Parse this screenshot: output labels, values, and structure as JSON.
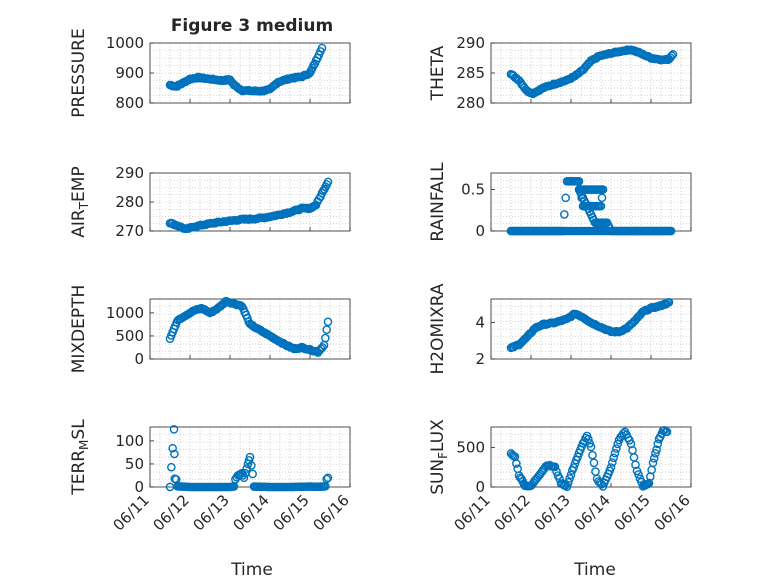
{
  "figure": {
    "title": "Figure 3 medium",
    "xlabel": "Time"
  },
  "colors": {
    "marker": "#0072BD",
    "axis": "#262626",
    "grid": "#b0b0b0",
    "background": "#ffffff"
  },
  "chart_data": [
    {
      "type": "scatter",
      "ylabel": "PRESSURE",
      "ylabel_main": "PRESSURE",
      "ylim": [
        800,
        1000
      ],
      "yticks": [
        800,
        900,
        1000
      ],
      "xlim": [
        0,
        5
      ],
      "xticks": [
        "06/11",
        "06/12",
        "06/13",
        "06/14",
        "06/15",
        "06/16"
      ],
      "show_xticklabels": false,
      "grid": true,
      "key": [
        [
          0.5,
          860
        ],
        [
          0.65,
          855
        ],
        [
          0.8,
          865
        ],
        [
          1.0,
          880
        ],
        [
          1.2,
          885
        ],
        [
          1.5,
          880
        ],
        [
          1.8,
          875
        ],
        [
          2.0,
          878
        ],
        [
          2.1,
          860
        ],
        [
          2.3,
          842
        ],
        [
          2.6,
          840
        ],
        [
          2.8,
          840
        ],
        [
          3.0,
          845
        ],
        [
          3.2,
          870
        ],
        [
          3.5,
          882
        ],
        [
          3.8,
          888
        ],
        [
          4.0,
          900
        ],
        [
          4.15,
          940
        ],
        [
          4.3,
          985
        ]
      ]
    },
    {
      "type": "scatter",
      "ylabel": "THETA",
      "ylabel_main": "THETA",
      "ylim": [
        280,
        290
      ],
      "yticks": [
        280,
        285,
        290
      ],
      "xlim": [
        0,
        5
      ],
      "xticks": [
        "06/11",
        "06/12",
        "06/13",
        "06/14",
        "06/15",
        "06/16"
      ],
      "show_xticklabels": false,
      "grid": true,
      "key": [
        [
          0.5,
          284.8
        ],
        [
          0.7,
          283.8
        ],
        [
          0.9,
          282
        ],
        [
          1.05,
          281.6
        ],
        [
          1.3,
          282.5
        ],
        [
          1.6,
          283.2
        ],
        [
          1.9,
          283.8
        ],
        [
          2.1,
          284.5
        ],
        [
          2.3,
          285.5
        ],
        [
          2.5,
          287
        ],
        [
          2.7,
          287.8
        ],
        [
          3.0,
          288.3
        ],
        [
          3.3,
          288.7
        ],
        [
          3.5,
          288.9
        ],
        [
          3.7,
          288.4
        ],
        [
          4.0,
          287.5
        ],
        [
          4.3,
          287.2
        ],
        [
          4.45,
          287.3
        ],
        [
          4.55,
          288.2
        ]
      ]
    },
    {
      "type": "scatter",
      "ylabel": "AIR_TEMP",
      "ylabel_main": "AIR",
      "ylabel_sub": "T",
      "ylabel_tail": "EMP",
      "ylim": [
        270,
        290
      ],
      "yticks": [
        270,
        280,
        290
      ],
      "xlim": [
        0,
        5
      ],
      "xticks": [
        "06/11",
        "06/12",
        "06/13",
        "06/14",
        "06/15",
        "06/16"
      ],
      "show_xticklabels": false,
      "grid": true,
      "key": [
        [
          0.5,
          272.8
        ],
        [
          0.7,
          271.8
        ],
        [
          0.9,
          270.6
        ],
        [
          1.1,
          271.5
        ],
        [
          1.4,
          272.3
        ],
        [
          1.7,
          273
        ],
        [
          2.0,
          273.5
        ],
        [
          2.3,
          274
        ],
        [
          2.6,
          274.2
        ],
        [
          2.9,
          274.7
        ],
        [
          3.2,
          275.5
        ],
        [
          3.5,
          276.5
        ],
        [
          3.8,
          277.8
        ],
        [
          4.0,
          277.8
        ],
        [
          4.15,
          279
        ],
        [
          4.3,
          283
        ],
        [
          4.45,
          287
        ]
      ]
    },
    {
      "type": "scatter",
      "ylabel": "RAINFALL",
      "ylabel_main": "RAINFALL",
      "ylim": [
        0,
        0.7
      ],
      "yticks": [
        0,
        0.5
      ],
      "xlim": [
        0,
        5
      ],
      "xticks": [
        "06/11",
        "06/12",
        "06/13",
        "06/14",
        "06/15",
        "06/16"
      ],
      "show_xticklabels": false,
      "grid": true,
      "key": [
        [
          0.5,
          0
        ],
        [
          1.0,
          0
        ],
        [
          1.5,
          0
        ],
        [
          1.8,
          0
        ],
        [
          1.9,
          0.6
        ],
        [
          2.0,
          0.6
        ],
        [
          2.2,
          0.6
        ],
        [
          2.3,
          0.3
        ],
        [
          2.4,
          0.3
        ],
        [
          2.5,
          0.3
        ],
        [
          2.6,
          0.3
        ],
        [
          2.75,
          0.3
        ],
        [
          2.8,
          0.5
        ],
        [
          2.2,
          0.5
        ],
        [
          2.6,
          0.1
        ],
        [
          2.9,
          0.1
        ],
        [
          3.0,
          0
        ],
        [
          3.5,
          0
        ],
        [
          4.0,
          0
        ],
        [
          4.5,
          0
        ]
      ]
    },
    {
      "type": "scatter",
      "ylabel": "MIXDEPTH",
      "ylabel_main": "MIXDEPTH",
      "ylim": [
        0,
        1300
      ],
      "yticks": [
        0,
        500,
        1000
      ],
      "xlim": [
        0,
        5
      ],
      "xticks": [
        "06/11",
        "06/12",
        "06/13",
        "06/14",
        "06/15",
        "06/16"
      ],
      "show_xticklabels": false,
      "grid": true,
      "key": [
        [
          0.5,
          450
        ],
        [
          0.6,
          650
        ],
        [
          0.7,
          850
        ],
        [
          0.9,
          950
        ],
        [
          1.1,
          1050
        ],
        [
          1.3,
          1100
        ],
        [
          1.5,
          1000
        ],
        [
          1.7,
          1100
        ],
        [
          1.9,
          1250
        ],
        [
          2.1,
          1200
        ],
        [
          2.3,
          1150
        ],
        [
          2.5,
          750
        ],
        [
          2.7,
          650
        ],
        [
          2.9,
          550
        ],
        [
          3.1,
          450
        ],
        [
          3.4,
          300
        ],
        [
          3.6,
          220
        ],
        [
          3.8,
          250
        ],
        [
          4.0,
          200
        ],
        [
          4.2,
          150
        ],
        [
          4.35,
          300
        ],
        [
          4.45,
          800
        ]
      ]
    },
    {
      "type": "scatter",
      "ylabel": "H2OMIXRA",
      "ylabel_main": "H2OMIXRA",
      "ylim": [
        2,
        5.3
      ],
      "yticks": [
        2,
        4
      ],
      "xlim": [
        0,
        5
      ],
      "xticks": [
        "06/11",
        "06/12",
        "06/13",
        "06/14",
        "06/15",
        "06/16"
      ],
      "show_xticklabels": false,
      "grid": true,
      "key": [
        [
          0.5,
          2.6
        ],
        [
          0.7,
          2.8
        ],
        [
          0.9,
          3.2
        ],
        [
          1.1,
          3.7
        ],
        [
          1.3,
          3.9
        ],
        [
          1.6,
          4.0
        ],
        [
          1.9,
          4.2
        ],
        [
          2.1,
          4.5
        ],
        [
          2.3,
          4.3
        ],
        [
          2.5,
          4.0
        ],
        [
          2.7,
          3.8
        ],
        [
          3.0,
          3.5
        ],
        [
          3.2,
          3.5
        ],
        [
          3.4,
          3.7
        ],
        [
          3.6,
          4.1
        ],
        [
          3.8,
          4.6
        ],
        [
          4.0,
          4.8
        ],
        [
          4.2,
          4.9
        ],
        [
          4.45,
          5.1
        ]
      ]
    },
    {
      "type": "scatter",
      "ylabel": "TERR_MSL",
      "ylabel_main": "TERR",
      "ylabel_sub": "M",
      "ylabel_tail": "SL",
      "ylim": [
        0,
        130
      ],
      "yticks": [
        0,
        50,
        100
      ],
      "xlim": [
        0,
        5
      ],
      "xticks": [
        "06/11",
        "06/12",
        "06/13",
        "06/14",
        "06/15",
        "06/16"
      ],
      "show_xticklabels": true,
      "grid": true,
      "key": [
        [
          0.5,
          2
        ],
        [
          0.6,
          125
        ],
        [
          0.62,
          18
        ],
        [
          1.0,
          0
        ],
        [
          1.5,
          0
        ],
        [
          2.0,
          0
        ],
        [
          2.2,
          25
        ],
        [
          2.3,
          30
        ],
        [
          2.35,
          20
        ],
        [
          2.45,
          50
        ],
        [
          2.5,
          65
        ],
        [
          2.6,
          10
        ],
        [
          3.0,
          0
        ],
        [
          3.5,
          0
        ],
        [
          4.0,
          10
        ],
        [
          4.2,
          5
        ],
        [
          4.35,
          12
        ],
        [
          4.45,
          20
        ]
      ]
    },
    {
      "type": "scatter",
      "ylabel": "SUN_FLUX",
      "ylabel_main": "SUN",
      "ylabel_sub": "F",
      "ylabel_tail": "LUX",
      "ylim": [
        0,
        760
      ],
      "yticks": [
        0,
        500
      ],
      "xlim": [
        0,
        5
      ],
      "xticks": [
        "06/11",
        "06/12",
        "06/13",
        "06/14",
        "06/15",
        "06/16"
      ],
      "show_xticklabels": true,
      "grid": true,
      "key": [
        [
          0.5,
          420
        ],
        [
          0.6,
          380
        ],
        [
          0.7,
          150
        ],
        [
          0.85,
          20
        ],
        [
          1.0,
          10
        ],
        [
          1.2,
          150
        ],
        [
          1.4,
          280
        ],
        [
          1.6,
          250
        ],
        [
          1.75,
          50
        ],
        [
          1.9,
          10
        ],
        [
          2.1,
          300
        ],
        [
          2.3,
          550
        ],
        [
          2.4,
          650
        ],
        [
          2.5,
          500
        ],
        [
          2.65,
          100
        ],
        [
          2.8,
          10
        ],
        [
          3.0,
          250
        ],
        [
          3.2,
          600
        ],
        [
          3.35,
          700
        ],
        [
          3.5,
          550
        ],
        [
          3.65,
          200
        ],
        [
          3.8,
          10
        ],
        [
          3.95,
          50
        ],
        [
          4.05,
          300
        ],
        [
          4.2,
          600
        ],
        [
          4.3,
          720
        ],
        [
          4.4,
          700
        ]
      ]
    }
  ]
}
